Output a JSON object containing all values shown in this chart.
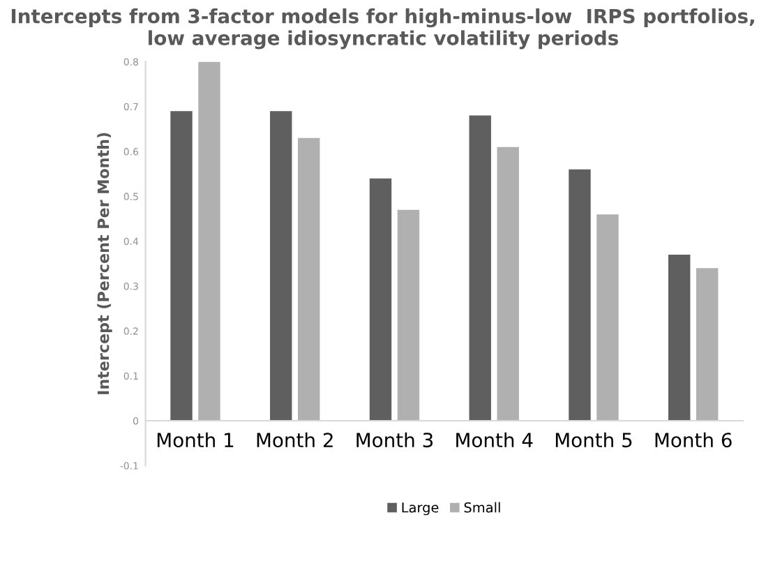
{
  "chart_data": {
    "type": "bar",
    "title": "Intercepts from 3-factor models for high-minus-low  IRPS portfolios, low average idiosyncratic volatility periods",
    "ylabel": "Intercept (Percent Per Month)",
    "categories": [
      "Month 1",
      "Month 2",
      "Month 3",
      "Month 4",
      "Month 5",
      "Month 6"
    ],
    "series": [
      {
        "name": "Large",
        "color": "#5f5f5f",
        "values": [
          0.69,
          0.69,
          0.54,
          0.68,
          0.56,
          0.37
        ]
      },
      {
        "name": "Small",
        "color": "#b0b0b0",
        "values": [
          0.8,
          0.63,
          0.47,
          0.61,
          0.46,
          0.34
        ]
      }
    ],
    "ylim": [
      -0.1,
      0.8
    ],
    "yticks": [
      -0.1,
      0,
      0.1,
      0.2,
      0.3,
      0.4,
      0.5,
      0.6,
      0.7,
      0.8
    ],
    "legend": "bottom"
  }
}
